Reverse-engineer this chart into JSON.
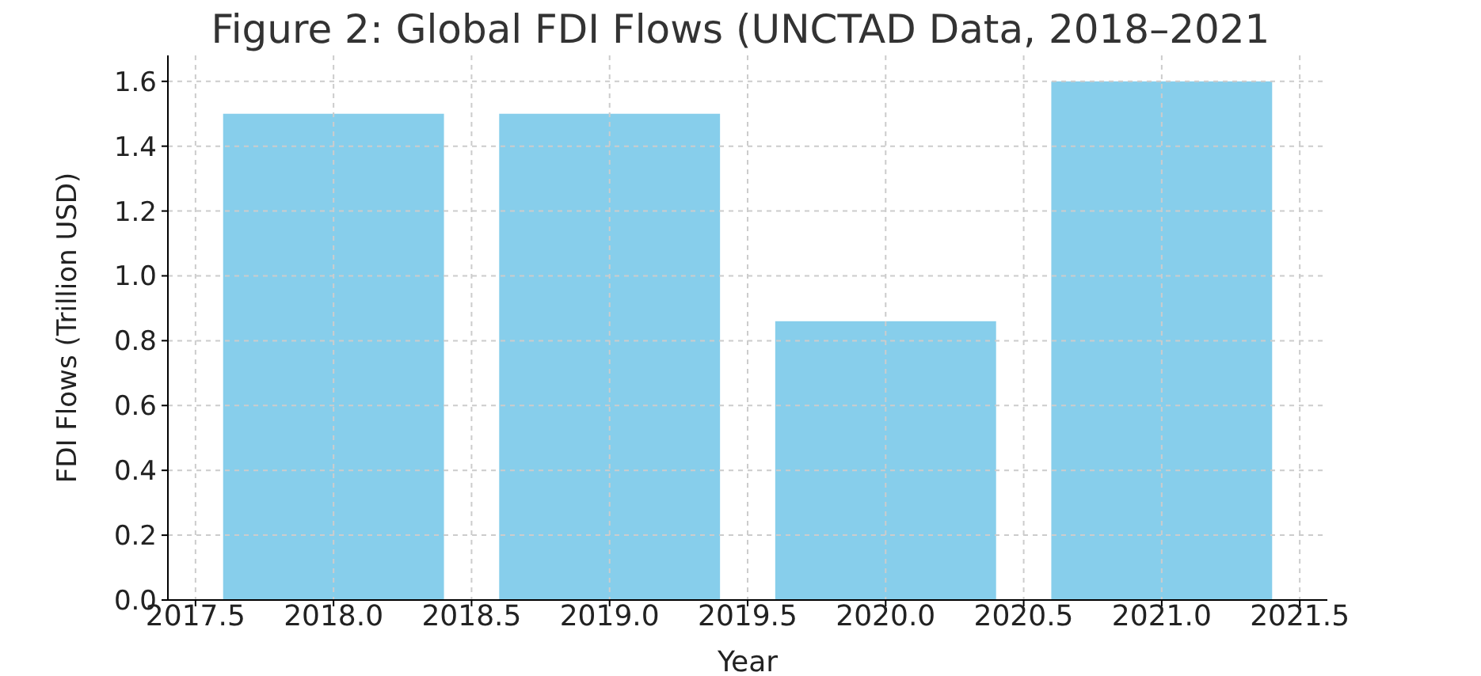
{
  "chart_data": {
    "type": "bar",
    "title": "Figure 2: Global FDI Flows (UNCTAD Data, 2018–2021",
    "xlabel": "Year",
    "ylabel": "FDI Flows (Trillion USD)",
    "x": [
      2018,
      2019,
      2020,
      2021
    ],
    "values": [
      1.5,
      1.5,
      0.86,
      1.6
    ],
    "color": "#87ceeb",
    "xlim": [
      2017.4,
      2021.6
    ],
    "xticks": [
      {
        "value": 2017.5,
        "label": "2017.5"
      },
      {
        "value": 2018,
        "label": "2018.0"
      },
      {
        "value": 2018.5,
        "label": "2018.5"
      },
      {
        "value": 2019,
        "label": "2019.0"
      },
      {
        "value": 2019.5,
        "label": "2019.5"
      },
      {
        "value": 2020,
        "label": "2020.0"
      },
      {
        "value": 2020.5,
        "label": "2020.5"
      },
      {
        "value": 2021,
        "label": "2021.0"
      },
      {
        "value": 2021.5,
        "label": "2021.5"
      }
    ],
    "ylim": [
      0,
      1.68
    ],
    "yticks": [
      {
        "value": 0,
        "label": "0.0"
      },
      {
        "value": 0.2,
        "label": "0.2"
      },
      {
        "value": 0.4,
        "label": "0.4"
      },
      {
        "value": 0.6,
        "label": "0.6"
      },
      {
        "value": 0.8,
        "label": "0.8"
      },
      {
        "value": 1,
        "label": "1.0"
      },
      {
        "value": 1.2,
        "label": "1.2"
      },
      {
        "value": 1.4,
        "label": "1.4"
      },
      {
        "value": 1.6,
        "label": "1.6"
      }
    ],
    "grid": true
  }
}
